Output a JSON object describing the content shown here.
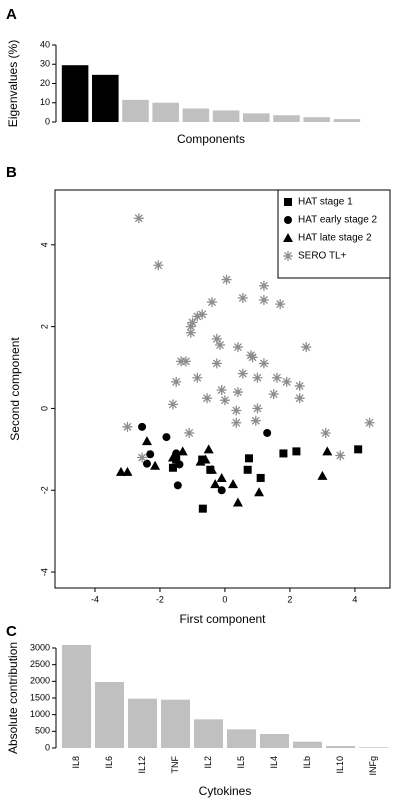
{
  "chart_data": [
    {
      "type": "bar",
      "label": "A",
      "ylabel": "Eigenvalues (%)",
      "xlabel": "Components",
      "categories": [
        null,
        null,
        null,
        null,
        null,
        null,
        null,
        null,
        null,
        null
      ],
      "values": [
        29.5,
        24.5,
        11.5,
        10,
        7,
        6,
        4.5,
        3.5,
        2.5,
        1.5
      ],
      "colors": [
        "#000000",
        "#000000",
        "#c0c0c0",
        "#c0c0c0",
        "#c0c0c0",
        "#c0c0c0",
        "#c0c0c0",
        "#c0c0c0",
        "#c0c0c0",
        "#c0c0c0"
      ],
      "ylim": [
        0,
        40
      ],
      "yticks": [
        0,
        10,
        20,
        30,
        40
      ]
    },
    {
      "type": "scatter",
      "label": "B",
      "xlabel": "First component",
      "ylabel": "Second component",
      "xlim": [
        -5.23,
        5.08
      ],
      "ylim": [
        -4.39,
        5.34
      ],
      "xticks": [
        -4,
        -2,
        0,
        2,
        4
      ],
      "yticks": [
        -4,
        -2,
        0,
        2,
        4
      ],
      "legend": "top-right",
      "series": [
        {
          "name": "HAT stage 1",
          "color": "#000000",
          "marker": "square",
          "x": [
            1.1,
            0.7,
            0.74,
            1.8,
            2.2,
            4.1,
            -0.7,
            -1.5,
            -0.68,
            -1.6,
            -0.45
          ],
          "y": [
            -1.7,
            -1.5,
            -1.22,
            -1.1,
            -1.05,
            -1.0,
            -1.25,
            -1.25,
            -2.45,
            -1.45,
            -1.5
          ]
        },
        {
          "name": "HAT early stage 2",
          "color": "#000000",
          "marker": "circle",
          "x": [
            -2.55,
            -1.8,
            -2.3,
            -1.5,
            -1.4,
            -1.45,
            -0.1,
            1.3,
            -2.4
          ],
          "y": [
            -0.45,
            -0.7,
            -1.12,
            -1.1,
            -1.37,
            -1.88,
            -2.0,
            -0.6,
            -1.35
          ]
        },
        {
          "name": "HAT late stage 2",
          "color": "#000000",
          "marker": "triangle",
          "x": [
            -3.2,
            -3.0,
            -2.4,
            -2.15,
            -1.6,
            -1.3,
            -0.5,
            -0.6,
            -0.4,
            -0.3,
            -0.1,
            0.25,
            0.4,
            1.05,
            3.0,
            3.15,
            -0.75
          ],
          "y": [
            -1.55,
            -1.55,
            -0.8,
            -1.4,
            -1.2,
            -1.05,
            -1.0,
            -1.25,
            -1.5,
            -1.85,
            -1.7,
            -1.85,
            -2.3,
            -2.05,
            -1.65,
            -1.05,
            -1.3
          ]
        },
        {
          "name": "SERO TL+",
          "color": "#8c8c8c",
          "marker": "asterisk",
          "x": [
            -2.65,
            -2.05,
            0.05,
            1.2,
            1.2,
            -0.4,
            0.55,
            1.7,
            -0.85,
            -1.05,
            -1.05,
            -1.0,
            -0.7,
            -0.25,
            -0.15,
            0.4,
            0.85,
            0.8,
            1.2,
            2.5,
            -1.2,
            -1.35,
            -1.5,
            -0.85,
            -0.25,
            0.55,
            1.0,
            1.6,
            1.9,
            2.3,
            2.3,
            -1.6,
            -0.55,
            -0.1,
            0,
            0.35,
            0.4,
            1,
            1.5,
            -3.0,
            -2.55,
            0.35,
            3.1,
            3.55,
            4.45,
            -1.1,
            0.95
          ],
          "y": [
            4.65,
            3.5,
            3.15,
            3.0,
            2.65,
            2.6,
            2.7,
            2.55,
            2.25,
            2.0,
            1.85,
            2.1,
            2.3,
            1.7,
            1.55,
            1.5,
            1.25,
            1.3,
            1.1,
            1.5,
            1.15,
            1.15,
            0.65,
            0.75,
            1.1,
            0.85,
            0.75,
            0.75,
            0.65,
            0.55,
            0.25,
            0.1,
            0.25,
            0.45,
            0.2,
            -0.05,
            0.4,
            0,
            0.35,
            -0.45,
            -1.2,
            -0.35,
            -0.6,
            -1.15,
            -0.35,
            -0.6,
            -0.3
          ]
        }
      ]
    },
    {
      "type": "bar",
      "label": "C",
      "ylabel": "Absolute contribution",
      "xlabel": "Cytokines",
      "categories": [
        "IL8",
        "IL6",
        "IL12",
        "TNF",
        "IL2",
        "IL5",
        "IL4",
        "ILb",
        "IL10",
        "INFg"
      ],
      "values": [
        3090,
        1980,
        1480,
        1450,
        860,
        560,
        420,
        190,
        60,
        20
      ],
      "colors": [
        "#c0c0c0",
        "#c0c0c0",
        "#c0c0c0",
        "#c0c0c0",
        "#c0c0c0",
        "#c0c0c0",
        "#c0c0c0",
        "#c0c0c0",
        "#c0c0c0",
        "#c0c0c0"
      ],
      "ylim": [
        0,
        3000
      ],
      "yticks": [
        0,
        500,
        1000,
        1500,
        2000,
        2500,
        3000
      ]
    }
  ]
}
